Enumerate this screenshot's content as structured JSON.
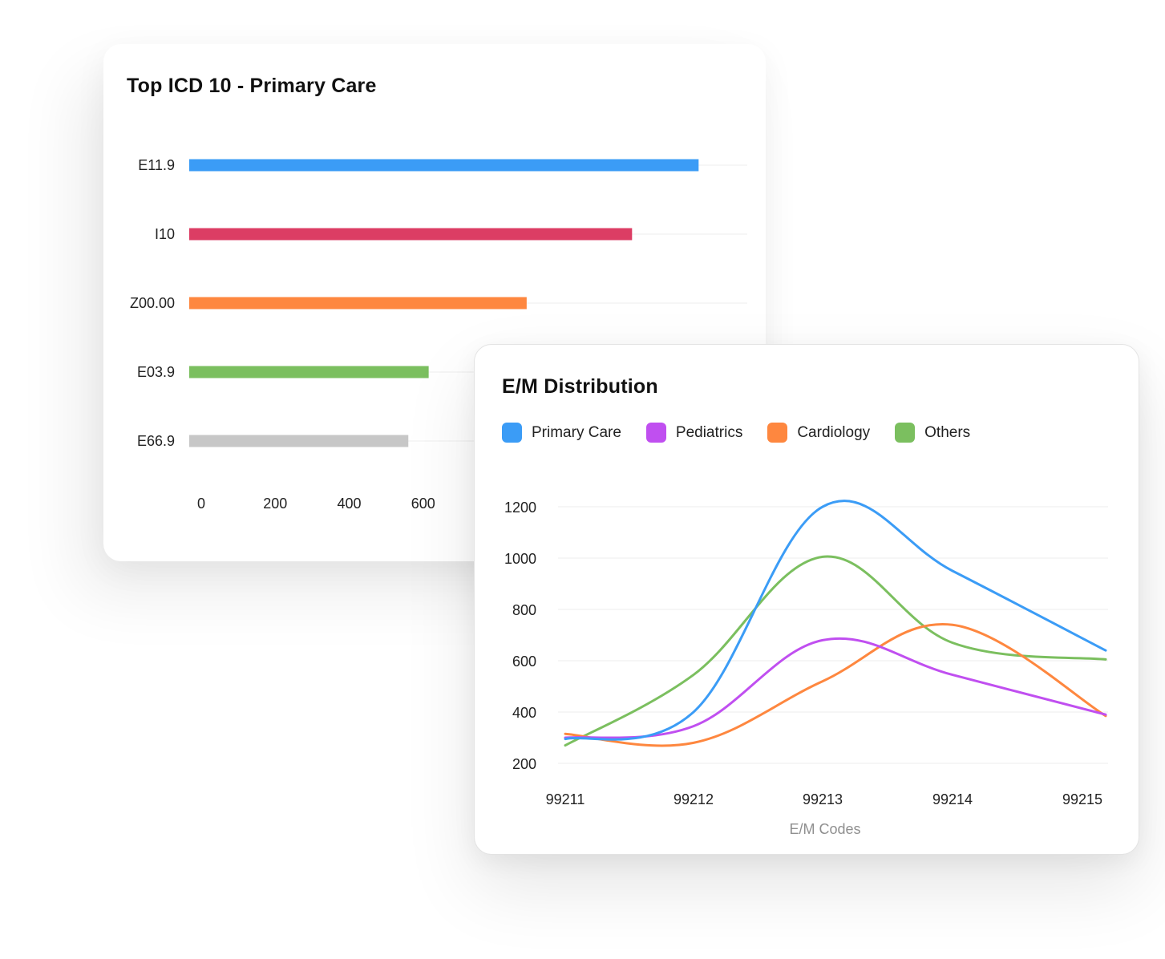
{
  "chart_data": [
    {
      "type": "bar",
      "orientation": "horizontal",
      "title": "Top ICD 10 - Primary Care",
      "categories": [
        "E11.9",
        "I10",
        "Z00.00",
        "E03.9",
        "E66.9"
      ],
      "values": [
        1345,
        1165,
        880,
        615,
        560
      ],
      "colors": [
        "#3b9cf6",
        "#dc3d64",
        "#fe873f",
        "#7bbf5f",
        "#c7c7c7"
      ],
      "x_ticks": [
        "0",
        "200",
        "400",
        "600"
      ],
      "xlim": [
        0,
        1500
      ],
      "grid": true
    },
    {
      "type": "line",
      "title": "E/M Distribution",
      "xlabel": "E/M Codes",
      "ylabel": "",
      "categories": [
        "99211",
        "99212",
        "99213",
        "99214",
        "99215"
      ],
      "y_ticks": [
        "200",
        "400",
        "600",
        "800",
        "1000",
        "1200"
      ],
      "ylim": [
        200,
        1200
      ],
      "legend_position": "top-left",
      "grid": true,
      "series": [
        {
          "name": "Primary Care",
          "color": "#3b9cf6",
          "values": [
            295,
            400,
            1200,
            950,
            640
          ]
        },
        {
          "name": "Pediatrics",
          "color": "#c04ff0",
          "values": [
            300,
            345,
            680,
            545,
            390
          ]
        },
        {
          "name": "Cardiology",
          "color": "#fe873f",
          "values": [
            315,
            280,
            520,
            740,
            385
          ]
        },
        {
          "name": "Others",
          "color": "#7bbf5f",
          "values": [
            270,
            545,
            1005,
            670,
            605
          ]
        }
      ]
    }
  ]
}
